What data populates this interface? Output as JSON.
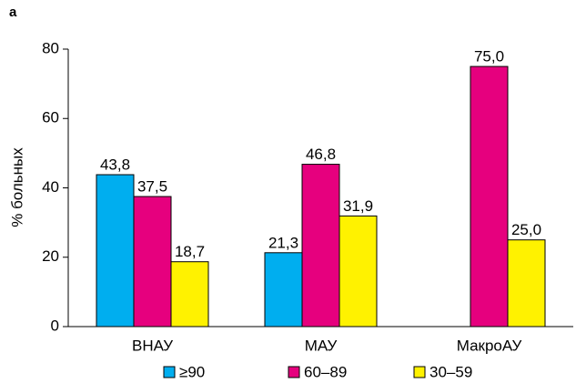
{
  "panel_label": "a",
  "chart_data": {
    "type": "bar",
    "y_label": "% больных",
    "categories": [
      "ВНАУ",
      "МАУ",
      "МакроАУ"
    ],
    "series": [
      {
        "name": "≥90",
        "color": "#00aeef",
        "values": [
          43.8,
          21.3,
          null
        ],
        "value_labels": [
          "43,8",
          "21,3",
          null
        ]
      },
      {
        "name": "60–89",
        "color": "#e6007e",
        "values": [
          37.5,
          46.8,
          75.0
        ],
        "value_labels": [
          "37,5",
          "46,8",
          "75,0"
        ]
      },
      {
        "name": "30–59",
        "color": "#fff200",
        "values": [
          18.7,
          31.9,
          25.0
        ],
        "value_labels": [
          "18,7",
          "31,9",
          "25,0"
        ]
      }
    ],
    "ylim": [
      0,
      80
    ],
    "yticks": [
      0,
      20,
      40,
      60,
      80
    ],
    "grid": false,
    "legend": "bottom"
  }
}
